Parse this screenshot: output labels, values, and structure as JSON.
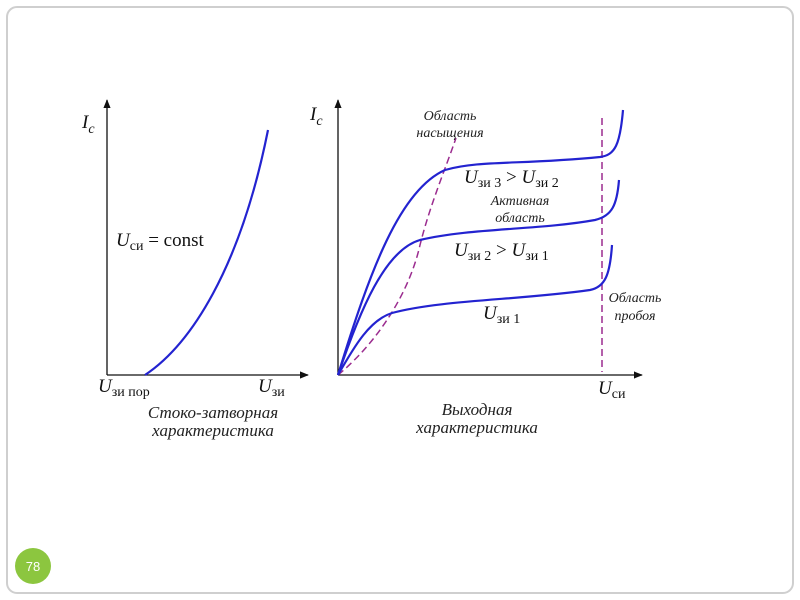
{
  "slide_number": "78",
  "left_graph": {
    "y_axis": {
      "symbol": "I",
      "subscript": "с"
    },
    "x_axis": {
      "symbol": "U",
      "subscript": "зи"
    },
    "threshold": {
      "symbol": "U",
      "subscript": "зи пор"
    },
    "condition": {
      "symbol": "U",
      "subscript": "си",
      "rest": " = const"
    },
    "caption": [
      "Стоко-затворная",
      "характеристика"
    ]
  },
  "right_graph": {
    "y_axis": {
      "symbol": "I",
      "subscript": "с"
    },
    "x_axis": {
      "symbol": "U",
      "subscript": "си"
    },
    "saturation_region": [
      "Область",
      "насыщения"
    ],
    "active_region": [
      "Активная",
      "область"
    ],
    "breakdown_region": [
      "Область",
      "пробоя"
    ],
    "curve_labels": [
      {
        "symbol": "U",
        "subscript": "зи 3",
        "relation": " > ",
        "symbol2": "U",
        "subscript2": "зи 2"
      },
      {
        "symbol": "U",
        "subscript": "зи 2",
        "relation": " > ",
        "symbol2": "U",
        "subscript2": "зи 1"
      },
      {
        "symbol": "U",
        "subscript": "зи 1"
      }
    ],
    "caption": [
      "Выходная",
      "характеристика"
    ]
  }
}
